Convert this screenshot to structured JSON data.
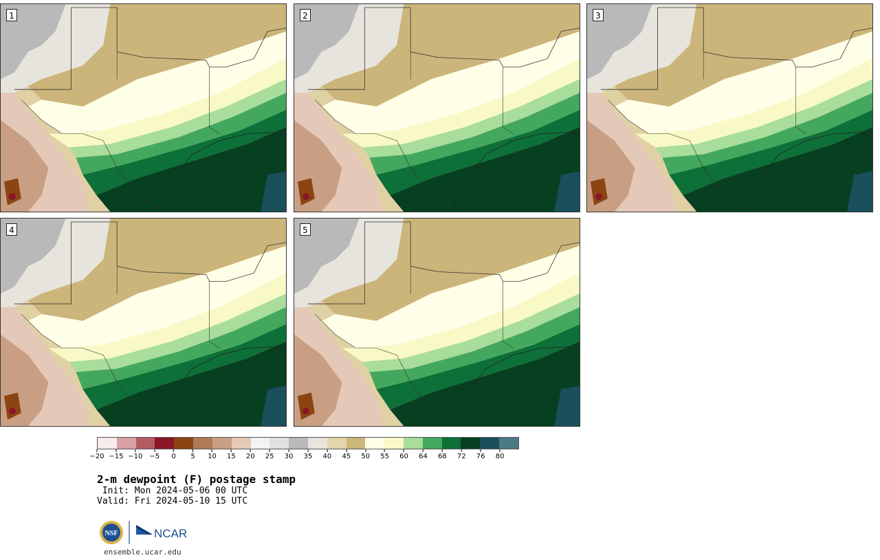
{
  "panels": [
    {
      "label": "1"
    },
    {
      "label": "2"
    },
    {
      "label": "3"
    },
    {
      "label": "4"
    },
    {
      "label": "5"
    }
  ],
  "colorbar": {
    "colors": [
      "#f7ebeb",
      "#d9a0a6",
      "#b45a63",
      "#8a1626",
      "#8b4513",
      "#b07a55",
      "#c99f84",
      "#e5c9b8",
      "#f3f3f3",
      "#e0e0e0",
      "#b9b9b9",
      "#e6e4dc",
      "#e3d5ac",
      "#ccb57a",
      "#ffffe8",
      "#f8f9c6",
      "#a9dd9b",
      "#43a85e",
      "#0d7038",
      "#073f21",
      "#1a4f5c",
      "#4a7a84"
    ],
    "tick_labels": [
      "−20",
      "−15",
      "−10",
      "−5",
      "0",
      "5",
      "10",
      "15",
      "20",
      "25",
      "30",
      "35",
      "40",
      "45",
      "50",
      "55",
      "60",
      "64",
      "68",
      "72",
      "76",
      "80"
    ]
  },
  "title": "2-m dewpoint (F) postage stamp",
  "init": " Init: Mon 2024-05-06 00 UTC",
  "valid": "Valid: Fri 2024-05-10 15 UTC",
  "logos": {
    "nsf": "NSF",
    "ncar": "NCAR"
  },
  "site": "ensemble.ucar.edu"
}
